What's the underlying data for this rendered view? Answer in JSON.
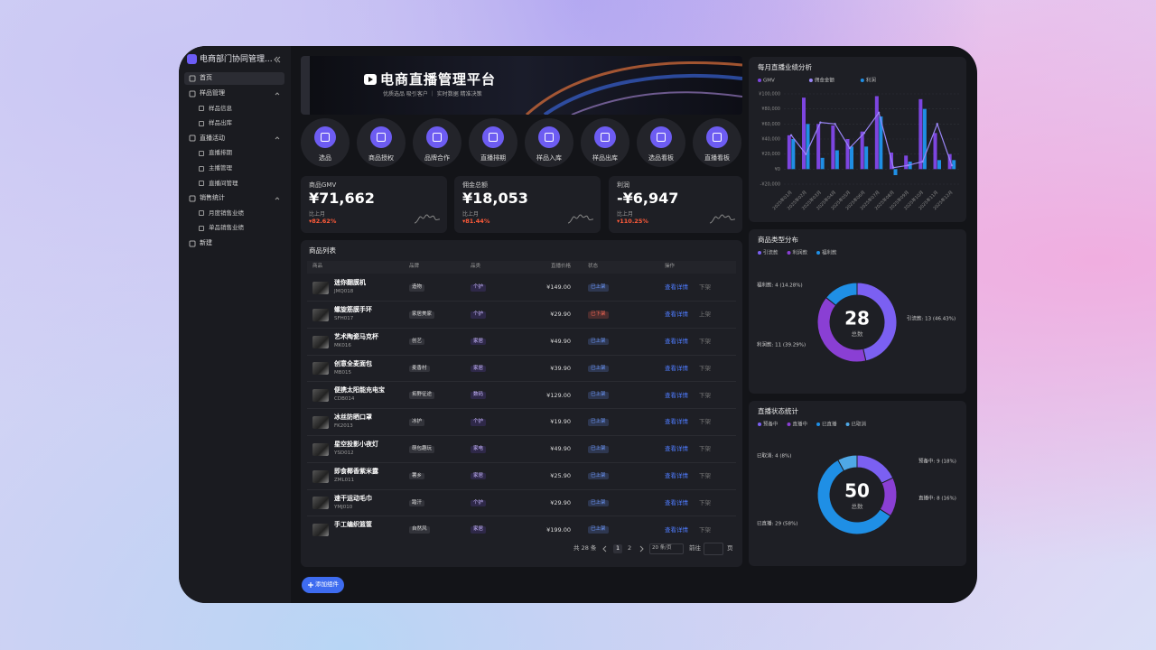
{
  "sidebar": {
    "title": "电商部门协同管理...",
    "menu": [
      {
        "label": "首页"
      },
      {
        "label": "样品管理",
        "children": [
          "样品信息",
          "样品出库"
        ]
      },
      {
        "label": "直播活动",
        "children": [
          "直播排期",
          "主播管理",
          "直播间管理"
        ]
      },
      {
        "label": "销售统计",
        "children": [
          "月度销售业绩",
          "单品销售业绩"
        ]
      },
      {
        "label": "新建"
      }
    ]
  },
  "banner": {
    "title": "电商直播管理平台",
    "subtitle": "优质选品 吸引客户 ｜ 实时数据 精准决策"
  },
  "shortcuts": [
    "选品",
    "商品授权",
    "品牌合作",
    "直播排期",
    "样品入库",
    "样品出库",
    "选品看板",
    "直播看板"
  ],
  "kpis": [
    {
      "label": "商品GMV",
      "value": "¥71,662",
      "compare_label": "比上月",
      "change": "▾82.62%"
    },
    {
      "label": "佣金总额",
      "value": "¥18,053",
      "compare_label": "比上月",
      "change": "▾81.44%"
    },
    {
      "label": "利润",
      "value": "-¥6,947",
      "compare_label": "比上月",
      "change": "▾110.25%"
    }
  ],
  "product_table": {
    "title": "商品列表",
    "columns": [
      "商品",
      "品牌",
      "品类",
      "直播价格",
      "状态",
      "操作"
    ],
    "rows": [
      {
        "name": "迷你翻膜机",
        "code": "JMQ018",
        "brand": "造物",
        "category": "个护",
        "price": "¥149.00",
        "status": "已上架",
        "status_color": "#6f9bff",
        "action": "查看详情",
        "toggle": "下架"
      },
      {
        "name": "螺旋筋膜手环",
        "code": "SFH017",
        "brand": "家居美家",
        "category": "个护",
        "price": "¥29.90",
        "status": "已下架",
        "status_color": "#ff6b57",
        "action": "查看详情",
        "toggle": "上架"
      },
      {
        "name": "艺术陶瓷马克杯",
        "code": "MK016",
        "brand": "创艺",
        "category": "家居",
        "price": "¥49.90",
        "status": "已上架",
        "status_color": "#6f9bff",
        "action": "查看详情",
        "toggle": "下架"
      },
      {
        "name": "创意全麦面包",
        "code": "MB015",
        "brand": "麦香村",
        "category": "家居",
        "price": "¥39.90",
        "status": "已上架",
        "status_color": "#6f9bff",
        "action": "查看详情",
        "toggle": "下架"
      },
      {
        "name": "便携太阳能充电宝",
        "code": "CDB014",
        "brand": "拓野征途",
        "category": "数码",
        "price": "¥129.00",
        "status": "已上架",
        "status_color": "#6f9bff",
        "action": "查看详情",
        "toggle": "下架"
      },
      {
        "name": "冰丝防晒口罩",
        "code": "FK2013",
        "brand": "冰护",
        "category": "个护",
        "price": "¥19.90",
        "status": "已上架",
        "status_color": "#6f9bff",
        "action": "查看详情",
        "toggle": "下架"
      },
      {
        "name": "星空投影小夜灯",
        "code": "YSD012",
        "brand": "萌包趣玩",
        "category": "家电",
        "price": "¥49.90",
        "status": "已上架",
        "status_color": "#6f9bff",
        "action": "查看详情",
        "toggle": "下架"
      },
      {
        "name": "即食椰香紫米露",
        "code": "ZML011",
        "brand": "薯乡",
        "category": "家居",
        "price": "¥25.90",
        "status": "已上架",
        "status_color": "#6f9bff",
        "action": "查看详情",
        "toggle": "下架"
      },
      {
        "name": "速干运动毛巾",
        "code": "YMJ010",
        "brand": "踏汗",
        "category": "个护",
        "price": "¥29.90",
        "status": "已上架",
        "status_color": "#6f9bff",
        "action": "查看详情",
        "toggle": "下架"
      },
      {
        "name": "手工编织篮筐",
        "brand": "自然风",
        "category": "家居",
        "price": "¥199.00",
        "status": "已上架",
        "status_color": "#6f9bff",
        "action": "查看详情",
        "toggle": "下架"
      }
    ]
  },
  "pagination": {
    "total": "共 28 条",
    "pages": [
      "1",
      "2"
    ],
    "page_size": "20 条/页",
    "goto": "前往",
    "page_unit": "页"
  },
  "add_button": "添加组件",
  "chart_data": [
    {
      "type": "bar",
      "title": "每月直播业绩分析",
      "categories": [
        "2025年01月",
        "2025年02月",
        "2025年03月",
        "2025年04月",
        "2025年05月",
        "2025年06月",
        "2025年07月",
        "2025年08月",
        "2025年09月",
        "2025年10月",
        "2025年11月",
        "2025年12月"
      ],
      "series": [
        {
          "name": "GMV",
          "color": "#7d45e0",
          "values": [
            45000,
            95000,
            60000,
            58000,
            40000,
            50000,
            97000,
            22000,
            18000,
            93000,
            48000,
            20000
          ]
        },
        {
          "name": "佣金金额",
          "type": "line",
          "color": "#9a86f7",
          "values": [
            45000,
            20000,
            62000,
            60000,
            28000,
            48000,
            75000,
            2000,
            5000,
            10000,
            60000,
            5000
          ]
        },
        {
          "name": "利润",
          "color": "#1f8fe5",
          "values": [
            40000,
            60000,
            15000,
            25000,
            30000,
            30000,
            70000,
            -8000,
            10000,
            80000,
            12000,
            12000
          ]
        }
      ],
      "ylim": [
        -20000,
        100000
      ],
      "yticks": [
        {
          "value": -20000,
          "label": "-¥20,000"
        },
        {
          "value": 0,
          "label": "¥0"
        },
        {
          "value": 20000,
          "label": "¥20,000"
        },
        {
          "value": 40000,
          "label": "¥40,000"
        },
        {
          "value": 60000,
          "label": "¥60,000"
        },
        {
          "value": 80000,
          "label": "¥80,000"
        },
        {
          "value": 100000,
          "label": "¥100,000"
        }
      ],
      "grid": true
    },
    {
      "type": "pie",
      "donut": true,
      "title": "商品类型分布",
      "categories": [
        "引流款",
        "利润款",
        "福利款"
      ],
      "values": [
        13,
        11,
        4
      ],
      "value_labels": [
        "引流款: 13 (46.43%)",
        "利润款: 11 (39.29%)",
        "福利款: 4 (14.28%)"
      ],
      "colors": [
        "#7b60f2",
        "#8a3fd4",
        "#1f8fe5"
      ],
      "center_value": 28,
      "center_label": "总数"
    },
    {
      "type": "pie",
      "donut": true,
      "title": "直播状态统计",
      "categories": [
        "预备中",
        "直播中",
        "已直播",
        "已取消"
      ],
      "values": [
        9,
        8,
        29,
        4
      ],
      "value_labels": [
        "预备中: 9 (18%)",
        "直播中: 8 (16%)",
        "已直播: 29 (58%)",
        "已取消: 4 (8%)"
      ],
      "colors": [
        "#7b60f2",
        "#8a3fd4",
        "#1f8fe5",
        "#4fa8e6"
      ],
      "center_value": 50,
      "center_label": "总数"
    }
  ]
}
